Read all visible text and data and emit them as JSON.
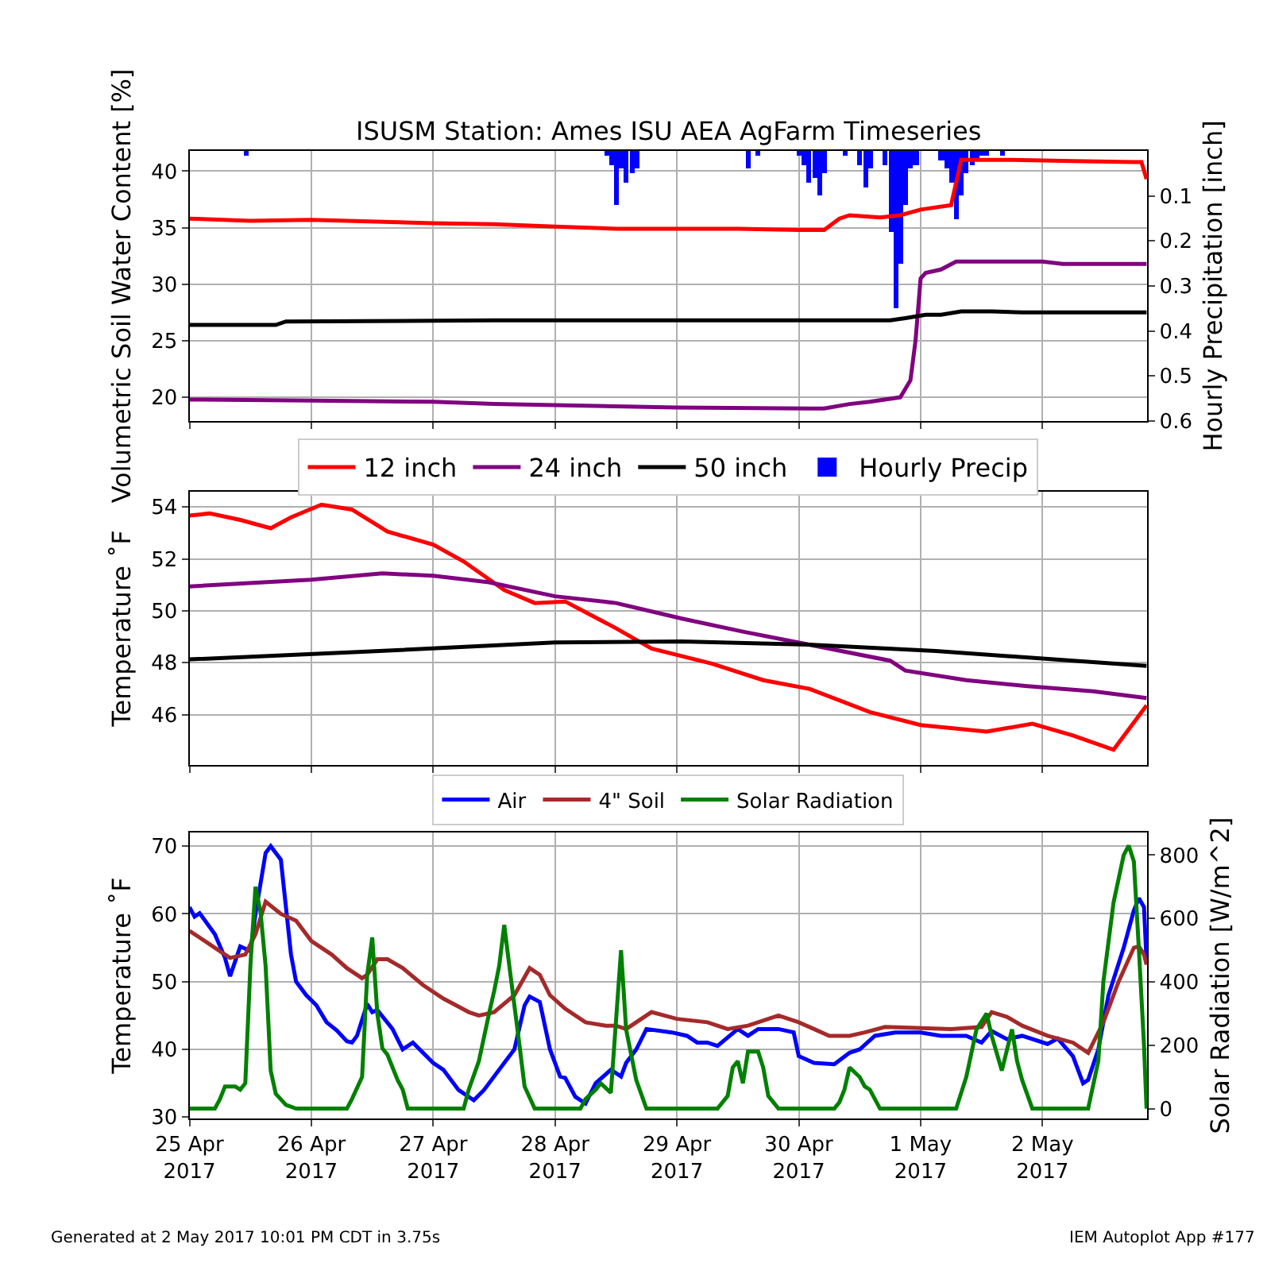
{
  "chart_data": [
    {
      "type": "line",
      "title": "ISUSM Station: Ames ISU AEA AgFarm Timeseries",
      "ylabel": "Volumetric Soil Water Content [%]",
      "y2label": "Hourly Precipitation [inch]",
      "xlim": [
        "2017-04-25T00:00",
        "2017-05-02T20:40"
      ],
      "xticks": [
        {
          "value": "2017-04-25",
          "label": null
        },
        {
          "value": "2017-04-26",
          "label": null
        },
        {
          "value": "2017-04-27",
          "label": null
        },
        {
          "value": "2017-04-28",
          "label": null
        },
        {
          "value": "2017-04-29",
          "label": null
        },
        {
          "value": "2017-04-30",
          "label": null
        },
        {
          "value": "2017-05-01",
          "label": null
        },
        {
          "value": "2017-05-02",
          "label": null
        }
      ],
      "ylim": [
        17.9,
        41.8
      ],
      "yticks": [
        20,
        25,
        30,
        35,
        40
      ],
      "y2lim": [
        0.6,
        0
      ],
      "y2ticks": [
        0.1,
        0.2,
        0.3,
        0.4,
        0.5,
        0.6
      ],
      "grid": true,
      "legend": "bottom",
      "tick_labels": "y",
      "series": [
        {
          "name": "12 inch",
          "color": "#ff0000",
          "x": [
            "2017-04-25T00:00",
            "2017-04-25T12:00",
            "2017-04-26T00:00",
            "2017-04-27T00:00",
            "2017-04-27T12:00",
            "2017-04-28T00:00",
            "2017-04-28T12:00",
            "2017-04-29T12:00",
            "2017-04-30T00:00",
            "2017-04-30T05:00",
            "2017-04-30T08:00",
            "2017-04-30T10:00",
            "2017-04-30T16:00",
            "2017-04-30T20:00",
            "2017-05-01T00:00",
            "2017-05-01T06:00",
            "2017-05-01T08:00",
            "2017-05-01T18:00",
            "2017-05-02T06:00",
            "2017-05-02T18:00",
            "2017-05-02T19:30",
            "2017-05-02T20:30"
          ],
          "values": [
            35.8,
            35.6,
            35.7,
            35.4,
            35.3,
            35.1,
            34.9,
            34.9,
            34.8,
            34.8,
            35.8,
            36.1,
            35.9,
            36.1,
            36.6,
            37.0,
            41.0,
            41.0,
            40.9,
            40.8,
            40.8,
            39.3
          ]
        },
        {
          "name": "24 inch",
          "color": "#800080",
          "x": [
            "2017-04-25T00:00",
            "2017-04-26T00:00",
            "2017-04-27T00:00",
            "2017-04-27T12:00",
            "2017-04-28T12:00",
            "2017-04-29T00:00",
            "2017-04-30T05:00",
            "2017-04-30T10:00",
            "2017-04-30T14:00",
            "2017-04-30T20:00",
            "2017-04-30T22:00",
            "2017-04-30T23:00",
            "2017-05-01T00:00",
            "2017-05-01T01:00",
            "2017-05-01T04:00",
            "2017-05-01T07:00",
            "2017-05-02T00:00",
            "2017-05-02T04:00",
            "2017-05-02T20:30"
          ],
          "values": [
            19.8,
            19.7,
            19.6,
            19.4,
            19.2,
            19.1,
            19.0,
            19.4,
            19.6,
            20.0,
            21.5,
            25.0,
            30.5,
            31.0,
            31.3,
            32.0,
            32.0,
            31.8,
            31.8
          ]
        },
        {
          "name": "50 inch",
          "color": "#000000",
          "x": [
            "2017-04-25T00:00",
            "2017-04-25T17:00",
            "2017-04-25T19:00",
            "2017-04-27T12:00",
            "2017-04-29T12:00",
            "2017-04-30T18:00",
            "2017-04-30T21:00",
            "2017-05-01T01:00",
            "2017-05-01T04:00",
            "2017-05-01T08:00",
            "2017-05-01T14:00",
            "2017-05-01T20:00",
            "2017-05-02T20:30"
          ],
          "values": [
            26.4,
            26.4,
            26.7,
            26.8,
            26.8,
            26.8,
            27.0,
            27.3,
            27.3,
            27.6,
            27.6,
            27.5,
            27.5
          ]
        },
        {
          "name": "Hourly Precip",
          "type": "bar",
          "axis": "y2",
          "color": "#0000ff",
          "x": [
            "2017-04-25T11:00",
            "2017-04-28T10:00",
            "2017-04-28T11:00",
            "2017-04-28T12:00",
            "2017-04-28T13:00",
            "2017-04-28T14:00",
            "2017-04-28T15:00",
            "2017-04-28T16:00",
            "2017-04-29T14:00",
            "2017-04-29T16:00",
            "2017-04-30T00:00",
            "2017-04-30T01:00",
            "2017-04-30T02:00",
            "2017-04-30T03:00",
            "2017-04-30T04:00",
            "2017-04-30T05:00",
            "2017-04-30T09:00",
            "2017-04-30T12:00",
            "2017-04-30T13:00",
            "2017-04-30T14:00",
            "2017-04-30T17:00",
            "2017-04-30T18:00",
            "2017-04-30T19:00",
            "2017-04-30T20:00",
            "2017-04-30T21:00",
            "2017-04-30T22:00",
            "2017-04-30T23:00",
            "2017-05-01T04:00",
            "2017-05-01T05:00",
            "2017-05-01T06:00",
            "2017-05-01T07:00",
            "2017-05-01T08:00",
            "2017-05-01T09:00",
            "2017-05-01T10:00",
            "2017-05-01T11:00",
            "2017-05-01T12:00",
            "2017-05-01T13:00",
            "2017-05-01T16:00"
          ],
          "values": [
            0.01,
            0.01,
            0.03,
            0.12,
            0.04,
            0.07,
            0.05,
            0.04,
            0.04,
            0.01,
            0.01,
            0.03,
            0.07,
            0.06,
            0.1,
            0.05,
            0.01,
            0.03,
            0.08,
            0.04,
            0.03,
            0.18,
            0.35,
            0.25,
            0.12,
            0.04,
            0.03,
            0.02,
            0.04,
            0.07,
            0.15,
            0.1,
            0.05,
            0.03,
            0.02,
            0.01,
            0.01,
            0.01
          ]
        }
      ]
    },
    {
      "type": "line",
      "ylabel": "Temperature ˚F",
      "xlim": [
        "2017-04-25T00:00",
        "2017-05-02T20:40"
      ],
      "xticks": [
        {
          "value": "2017-04-25",
          "label": null
        },
        {
          "value": "2017-04-26",
          "label": null
        },
        {
          "value": "2017-04-27",
          "label": null
        },
        {
          "value": "2017-04-28",
          "label": null
        },
        {
          "value": "2017-04-29",
          "label": null
        },
        {
          "value": "2017-04-30",
          "label": null
        },
        {
          "value": "2017-05-01",
          "label": null
        },
        {
          "value": "2017-05-02",
          "label": null
        }
      ],
      "ylim": [
        44.05,
        54.6
      ],
      "yticks": [
        46,
        48,
        50,
        52,
        54
      ],
      "grid": true,
      "tick_labels": "y",
      "series": [
        {
          "color": "#ff0000",
          "x": [
            "2017-04-25T00:00",
            "2017-04-25T04:00",
            "2017-04-25T10:00",
            "2017-04-25T16:00",
            "2017-04-25T20:00",
            "2017-04-26T02:00",
            "2017-04-26T08:00",
            "2017-04-26T15:00",
            "2017-04-27T00:00",
            "2017-04-27T06:00",
            "2017-04-27T14:00",
            "2017-04-27T20:00",
            "2017-04-28T02:00",
            "2017-04-28T12:00",
            "2017-04-28T19:00",
            "2017-04-29T07:00",
            "2017-04-29T17:00",
            "2017-04-30T02:00",
            "2017-04-30T14:00",
            "2017-05-01T00:00",
            "2017-05-01T13:00",
            "2017-05-01T22:00",
            "2017-05-02T06:00",
            "2017-05-02T14:00",
            "2017-05-02T20:30"
          ],
          "values": [
            53.67,
            53.75,
            53.5,
            53.18,
            53.6,
            54.09,
            53.9,
            53.05,
            52.55,
            51.9,
            50.8,
            50.3,
            50.36,
            49.33,
            48.55,
            47.96,
            47.33,
            47.0,
            46.1,
            45.6,
            45.35,
            45.65,
            45.2,
            44.65,
            46.36
          ]
        },
        {
          "color": "#800080",
          "x": [
            "2017-04-25T00:00",
            "2017-04-26T00:00",
            "2017-04-26T14:00",
            "2017-04-27T00:00",
            "2017-04-27T11:00",
            "2017-04-28T00:00",
            "2017-04-28T12:00",
            "2017-04-29T01:00",
            "2017-04-29T13:00",
            "2017-04-30T02:00",
            "2017-04-30T18:00",
            "2017-04-30T21:00",
            "2017-05-01T09:00",
            "2017-05-01T21:00",
            "2017-05-02T10:00",
            "2017-05-02T20:30"
          ],
          "values": [
            50.94,
            51.2,
            51.44,
            51.35,
            51.1,
            50.56,
            50.3,
            49.7,
            49.2,
            48.7,
            48.08,
            47.7,
            47.33,
            47.1,
            46.9,
            46.64
          ]
        },
        {
          "color": "#000000",
          "x": [
            "2017-04-25T00:00",
            "2017-04-26T10:00",
            "2017-04-28T00:00",
            "2017-04-29T01:00",
            "2017-04-30T02:00",
            "2017-05-01T03:00",
            "2017-05-02T20:30"
          ],
          "values": [
            48.13,
            48.42,
            48.78,
            48.82,
            48.7,
            48.45,
            47.88
          ]
        }
      ]
    },
    {
      "type": "line",
      "ylabel": "Temperature ˚F",
      "y2label": "Solar Radiation [W/m^2]",
      "xlim": [
        "2017-04-25T00:00",
        "2017-05-02T20:40"
      ],
      "xticks": [
        {
          "value": "2017-04-25",
          "label": "25 Apr\n2017"
        },
        {
          "value": "2017-04-26",
          "label": "26 Apr\n2017"
        },
        {
          "value": "2017-04-27",
          "label": "27 Apr\n2017"
        },
        {
          "value": "2017-04-28",
          "label": "28 Apr\n2017"
        },
        {
          "value": "2017-04-29",
          "label": "29 Apr\n2017"
        },
        {
          "value": "2017-04-30",
          "label": "30 Apr\n2017"
        },
        {
          "value": "2017-05-01",
          "label": "1 May\n2017"
        },
        {
          "value": "2017-05-02",
          "label": "2 May\n2017"
        }
      ],
      "ylim": [
        29.8,
        72
      ],
      "yticks": [
        30,
        40,
        50,
        60,
        70
      ],
      "y2lim": [
        -31,
        871
      ],
      "y2ticks": [
        0,
        200,
        400,
        600,
        800
      ],
      "grid": true,
      "legend": "top",
      "annotations": [
        "Generated at 2 May 2017 10:01 PM CDT in 3.75s",
        "IEM Autoplot App #177"
      ],
      "series": [
        {
          "name": "Air",
          "color": "#0000ff",
          "x": [
            "2017-04-25T00:00",
            "2017-04-25T01:00",
            "2017-04-25T02:00",
            "2017-04-25T05:00",
            "2017-04-25T07:00",
            "2017-04-25T08:00",
            "2017-04-25T10:00",
            "2017-04-25T12:00",
            "2017-04-25T13:00",
            "2017-04-25T15:00",
            "2017-04-25T16:00",
            "2017-04-25T18:00",
            "2017-04-25T20:00",
            "2017-04-25T21:00",
            "2017-04-25T23:00",
            "2017-04-26T01:00",
            "2017-04-26T03:00",
            "2017-04-26T05:00",
            "2017-04-26T07:00",
            "2017-04-26T08:00",
            "2017-04-26T09:00",
            "2017-04-26T11:00",
            "2017-04-26T12:00",
            "2017-04-26T13:00",
            "2017-04-26T16:00",
            "2017-04-26T18:00",
            "2017-04-26T20:00",
            "2017-04-27T00:00",
            "2017-04-27T02:00",
            "2017-04-27T05:00",
            "2017-04-27T08:00",
            "2017-04-27T10:00",
            "2017-04-27T16:00",
            "2017-04-27T18:00",
            "2017-04-27T19:00",
            "2017-04-27T21:00",
            "2017-04-27T23:00",
            "2017-04-28T01:00",
            "2017-04-28T02:00",
            "2017-04-28T04:00",
            "2017-04-28T06:00",
            "2017-04-28T08:00",
            "2017-04-28T11:00",
            "2017-04-28T13:00",
            "2017-04-28T14:00",
            "2017-04-28T16:00",
            "2017-04-28T18:00",
            "2017-04-28T23:00",
            "2017-04-29T02:00",
            "2017-04-29T04:00",
            "2017-04-29T06:00",
            "2017-04-29T08:00",
            "2017-04-29T12:00",
            "2017-04-29T14:00",
            "2017-04-29T16:00",
            "2017-04-29T20:00",
            "2017-04-29T23:00",
            "2017-04-30T00:00",
            "2017-04-30T03:00",
            "2017-04-30T07:00",
            "2017-04-30T10:00",
            "2017-04-30T12:00",
            "2017-04-30T15:00",
            "2017-04-30T19:00",
            "2017-05-01T00:00",
            "2017-05-01T04:00",
            "2017-05-01T09:00",
            "2017-05-01T12:00",
            "2017-05-01T14:00",
            "2017-05-01T17:00",
            "2017-05-01T20:00",
            "2017-05-02T01:00",
            "2017-05-02T03:00",
            "2017-05-02T06:00",
            "2017-05-02T08:00",
            "2017-05-02T09:00",
            "2017-05-02T11:00",
            "2017-05-02T13:00",
            "2017-05-02T16:00",
            "2017-05-02T18:00",
            "2017-05-02T19:00",
            "2017-05-02T20:00",
            "2017-05-02T20:30"
          ],
          "values": [
            61.0,
            59.6,
            60.1,
            57.0,
            53.5,
            50.8,
            55.2,
            54.5,
            60.0,
            69.0,
            70.0,
            68.0,
            54.0,
            50.0,
            48.0,
            46.5,
            44.0,
            42.8,
            41.2,
            41.0,
            42.0,
            46.7,
            45.5,
            45.8,
            43.0,
            40.0,
            41.0,
            38.0,
            37.0,
            34.0,
            32.5,
            34.0,
            40.0,
            46.5,
            47.8,
            47.0,
            40.0,
            36.0,
            35.8,
            33.0,
            32.0,
            35.0,
            37.0,
            36.0,
            38.0,
            40.0,
            43.0,
            42.5,
            42.0,
            41.0,
            41.0,
            40.5,
            43.0,
            42.0,
            43.0,
            43.0,
            42.5,
            39.0,
            38.0,
            37.8,
            39.5,
            40.0,
            42.0,
            42.5,
            42.5,
            42.0,
            42.0,
            41.0,
            42.7,
            41.5,
            42.0,
            40.8,
            41.6,
            39.0,
            35.0,
            35.5,
            40.0,
            48.0,
            55.0,
            60.5,
            62.3,
            61.0,
            53.0
          ]
        },
        {
          "name": "4\" Soil",
          "color": "#a52a2a",
          "x": [
            "2017-04-25T00:00",
            "2017-04-25T02:00",
            "2017-04-25T05:00",
            "2017-04-25T08:00",
            "2017-04-25T11:00",
            "2017-04-25T13:00",
            "2017-04-25T15:00",
            "2017-04-25T18:00",
            "2017-04-25T21:00",
            "2017-04-26T00:00",
            "2017-04-26T04:00",
            "2017-04-26T07:00",
            "2017-04-26T10:00",
            "2017-04-26T11:00",
            "2017-04-26T13:00",
            "2017-04-26T15:00",
            "2017-04-26T18:00",
            "2017-04-26T22:00",
            "2017-04-27T02:00",
            "2017-04-27T07:00",
            "2017-04-27T09:00",
            "2017-04-27T12:00",
            "2017-04-27T16:00",
            "2017-04-27T19:00",
            "2017-04-27T21:00",
            "2017-04-27T23:00",
            "2017-04-28T02:00",
            "2017-04-28T06:00",
            "2017-04-28T10:00",
            "2017-04-28T12:00",
            "2017-04-28T14:00",
            "2017-04-28T19:00",
            "2017-04-29T00:00",
            "2017-04-29T06:00",
            "2017-04-29T10:00",
            "2017-04-29T14:00",
            "2017-04-29T18:00",
            "2017-04-29T20:00",
            "2017-04-30T00:00",
            "2017-04-30T03:00",
            "2017-04-30T06:00",
            "2017-04-30T10:00",
            "2017-04-30T13:00",
            "2017-04-30T17:00",
            "2017-04-30T22:00",
            "2017-05-01T06:00",
            "2017-05-01T12:00",
            "2017-05-01T14:00",
            "2017-05-01T17:00",
            "2017-05-01T20:00",
            "2017-05-02T01:00",
            "2017-05-02T06:00",
            "2017-05-02T09:00",
            "2017-05-02T12:00",
            "2017-05-02T15:00",
            "2017-05-02T18:00",
            "2017-05-02T19:00",
            "2017-05-02T20:00",
            "2017-05-02T20:30"
          ],
          "values": [
            57.5,
            56.5,
            55.0,
            53.5,
            54.0,
            57.0,
            61.8,
            60.0,
            59.0,
            56.0,
            54.0,
            52.0,
            50.5,
            51.0,
            53.3,
            53.3,
            52.0,
            49.5,
            47.5,
            45.5,
            45.0,
            45.5,
            48.0,
            52.0,
            51.0,
            48.0,
            46.0,
            44.0,
            43.5,
            43.5,
            43.0,
            45.5,
            44.5,
            44.0,
            43.0,
            43.5,
            44.5,
            45.0,
            44.0,
            43.0,
            42.0,
            42.0,
            42.5,
            43.3,
            43.2,
            43.0,
            43.3,
            45.5,
            44.8,
            43.5,
            42.0,
            41.0,
            39.5,
            44.0,
            50.0,
            55.0,
            55.2,
            54.0,
            52.5
          ]
        },
        {
          "name": "Solar Radiation",
          "axis": "y2",
          "color": "#008000",
          "x": [
            "2017-04-25T00:00",
            "2017-04-25T05:00",
            "2017-04-25T06:00",
            "2017-04-25T07:00",
            "2017-04-25T09:00",
            "2017-04-25T10:00",
            "2017-04-25T11:00",
            "2017-04-25T12:00",
            "2017-04-25T13:00",
            "2017-04-25T14:00",
            "2017-04-25T15:00",
            "2017-04-25T16:00",
            "2017-04-25T17:00",
            "2017-04-25T19:00",
            "2017-04-25T21:00",
            "2017-04-26T07:00",
            "2017-04-26T08:00",
            "2017-04-26T10:00",
            "2017-04-26T11:00",
            "2017-04-26T12:00",
            "2017-04-26T13:00",
            "2017-04-26T14:00",
            "2017-04-26T15:00",
            "2017-04-26T17:00",
            "2017-04-26T18:00",
            "2017-04-26T19:00",
            "2017-04-27T06:00",
            "2017-04-27T07:00",
            "2017-04-27T09:00",
            "2017-04-27T11:00",
            "2017-04-27T12:00",
            "2017-04-27T13:00",
            "2017-04-27T14:00",
            "2017-04-27T15:00",
            "2017-04-27T17:00",
            "2017-04-27T18:00",
            "2017-04-27T20:00",
            "2017-04-28T05:00",
            "2017-04-28T06:00",
            "2017-04-28T08:00",
            "2017-04-28T09:00",
            "2017-04-28T11:00",
            "2017-04-28T13:00",
            "2017-04-28T14:00",
            "2017-04-28T16:00",
            "2017-04-28T18:00",
            "2017-04-29T08:00",
            "2017-04-29T10:00",
            "2017-04-29T11:00",
            "2017-04-29T12:00",
            "2017-04-29T13:00",
            "2017-04-29T14:00",
            "2017-04-29T16:00",
            "2017-04-29T17:00",
            "2017-04-29T18:00",
            "2017-04-29T20:00",
            "2017-04-30T07:00",
            "2017-04-30T08:00",
            "2017-04-30T09:00",
            "2017-04-30T10:00",
            "2017-04-30T12:00",
            "2017-04-30T13:00",
            "2017-04-30T14:00",
            "2017-04-30T16:00",
            "2017-05-01T07:00",
            "2017-05-01T09:00",
            "2017-05-01T11:00",
            "2017-05-01T13:00",
            "2017-05-01T14:00",
            "2017-05-01T16:00",
            "2017-05-01T18:00",
            "2017-05-01T19:00",
            "2017-05-01T20:00",
            "2017-05-01T22:00",
            "2017-05-02T09:00",
            "2017-05-02T11:00",
            "2017-05-02T12:00",
            "2017-05-02T14:00",
            "2017-05-02T16:00",
            "2017-05-02T17:00",
            "2017-05-02T18:00",
            "2017-05-02T19:00",
            "2017-05-02T20:00",
            "2017-05-02T20:30"
          ],
          "values": [
            0,
            0,
            30,
            70,
            70,
            60,
            80,
            450,
            700,
            620,
            450,
            120,
            47,
            12,
            0,
            0,
            30,
            100,
            420,
            540,
            300,
            190,
            170,
            90,
            60,
            0,
            0,
            60,
            150,
            300,
            370,
            450,
            580,
            450,
            200,
            70,
            0,
            0,
            30,
            60,
            80,
            50,
            500,
            250,
            90,
            0,
            0,
            40,
            130,
            150,
            80,
            180,
            180,
            130,
            40,
            0,
            0,
            20,
            60,
            130,
            100,
            70,
            60,
            0,
            0,
            100,
            250,
            300,
            230,
            120,
            250,
            150,
            90,
            0,
            0,
            150,
            400,
            650,
            800,
            830,
            780,
            500,
            200,
            0
          ]
        }
      ]
    }
  ]
}
